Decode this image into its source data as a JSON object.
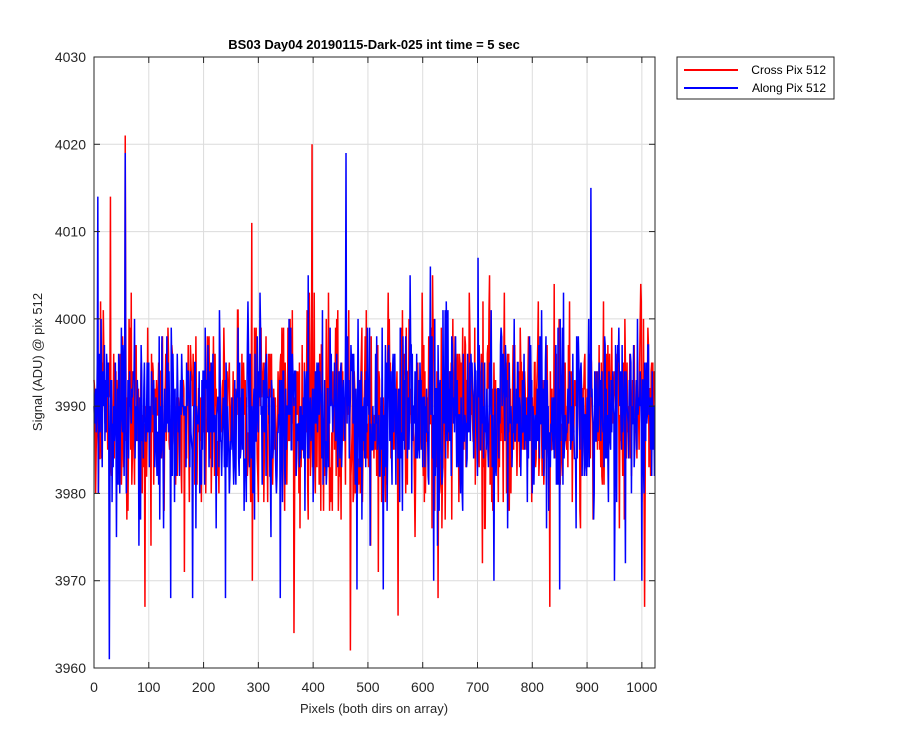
{
  "chart_data": {
    "type": "line",
    "title": "BS03 Day04 20190115-Dark-025 int time = 5 sec",
    "xlabel": "Pixels (both dirs on array)",
    "ylabel": "Signal (ADU) @ pix 512",
    "xlim": [
      0,
      1024
    ],
    "ylim": [
      3960,
      4030
    ],
    "x_ticks": [
      0,
      100,
      200,
      300,
      400,
      500,
      600,
      700,
      800,
      900,
      1000
    ],
    "y_ticks": [
      3960,
      3970,
      3980,
      3990,
      4000,
      4010,
      4020,
      4030
    ],
    "x_tick_labels": [
      "0",
      "100",
      "200",
      "300",
      "400",
      "500",
      "600",
      "700",
      "800",
      "900",
      "1000"
    ],
    "y_tick_labels": [
      "3960",
      "3970",
      "3980",
      "3990",
      "4000",
      "4010",
      "4020",
      "4030"
    ],
    "grid": true,
    "legend": "outside-top-right",
    "series": [
      {
        "name": "Cross Pix 512",
        "color": "#ff0000",
        "n_points": 1024,
        "mean": 3989,
        "sd": 6,
        "seed": 17,
        "x": [
          0,
          30,
          57,
          93,
          165,
          235,
          288,
          365,
          398,
          468,
          555,
          628,
          697,
          757,
          832,
          885,
          1005
        ],
        "values": [
          3993,
          4014,
          4021,
          3967,
          3971,
          3993,
          4011,
          3964,
          4020,
          3962,
          3966,
          3968,
          3993,
          3996,
          3967,
          3994,
          3967
        ]
      },
      {
        "name": "Along Pix 512",
        "color": "#0000ff",
        "n_points": 1024,
        "mean": 3989,
        "sd": 5.5,
        "seed": 91,
        "x": [
          0,
          7,
          28,
          57,
          140,
          180,
          240,
          340,
          460,
          480,
          528,
          620,
          730,
          850,
          907,
          950,
          1000
        ],
        "values": [
          3990,
          4014,
          3961,
          4019,
          3968,
          3968,
          3968,
          3968,
          4019,
          3969,
          3969,
          3970,
          3970,
          3969,
          4015,
          3970,
          3970
        ]
      }
    ]
  }
}
